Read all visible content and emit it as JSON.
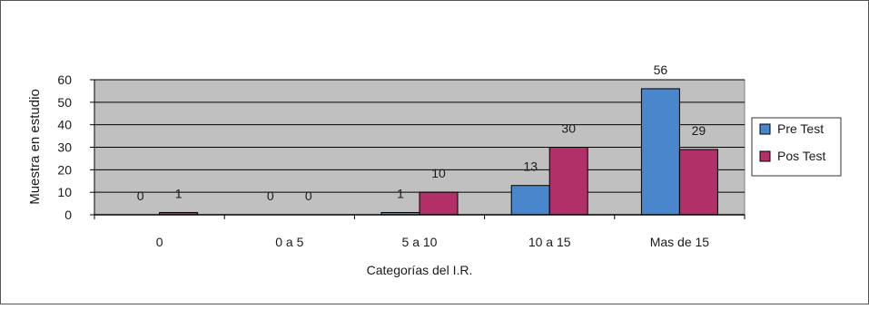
{
  "chart_data": {
    "type": "bar",
    "title": "",
    "xlabel": "Categorías del I.R.",
    "ylabel": "Muestra en estudio",
    "categories": [
      "0",
      "0 a 5",
      "5 a 10",
      "10 a 15",
      "Mas de 15"
    ],
    "series": [
      {
        "name": "Pre Test",
        "values": [
          0,
          0,
          1,
          13,
          56
        ],
        "color": "#4a86cc"
      },
      {
        "name": "Pos Test",
        "values": [
          1,
          0,
          10,
          30,
          29
        ],
        "color": "#b23068"
      }
    ],
    "ylim": [
      0,
      60
    ],
    "yticks": [
      0,
      10,
      20,
      30,
      40,
      50,
      60
    ],
    "grid": true,
    "legend": "right",
    "data_labels": true,
    "plot_background": "#c0c0c0"
  }
}
